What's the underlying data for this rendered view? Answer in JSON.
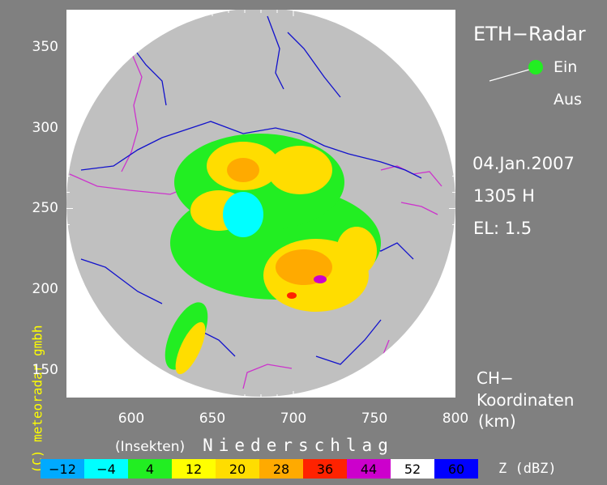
{
  "title": "ETH−Radar",
  "toggle": {
    "on_label": "Ein",
    "off_label": "Aus",
    "state": "on",
    "on_color": "#22ee22"
  },
  "date": "04.Jan.2007",
  "time": "1305 H",
  "elevation": "EL: 1.5",
  "coords_label_line1": "CH−",
  "coords_label_line2": "Koordinaten",
  "coords_label_line3": "(km)",
  "copyright": "(C) meteoradar gmbh",
  "axes": {
    "x_ticks": [
      "600",
      "650",
      "700",
      "750",
      "800"
    ],
    "y_ticks": [
      "350",
      "300",
      "250",
      "200",
      "150"
    ],
    "x_range": [
      560,
      800
    ],
    "y_range": [
      133,
      373
    ]
  },
  "legend": {
    "insects_label": "(Insekten)",
    "precip_label": "Niederschlag",
    "unit_label": "Z (dBZ)",
    "classes": [
      {
        "label": "−12",
        "color": "#00aaff"
      },
      {
        "label": "−4",
        "color": "#00ffff"
      },
      {
        "label": "4",
        "color": "#22ee22"
      },
      {
        "label": "12",
        "color": "#ffff00"
      },
      {
        "label": "20",
        "color": "#ffdd00"
      },
      {
        "label": "28",
        "color": "#ffaa00"
      },
      {
        "label": "36",
        "color": "#ff2200"
      },
      {
        "label": "44",
        "color": "#cc00cc"
      },
      {
        "label": "52",
        "color": "#ffffff"
      },
      {
        "label": "60",
        "color": "#0000ff"
      }
    ]
  },
  "colors": {
    "background": "#808080",
    "radar_disc": "#c0c0c0",
    "frame": "#ffffff",
    "border_lines": "#cc33cc",
    "lakes_rivers": "#1111cc"
  }
}
